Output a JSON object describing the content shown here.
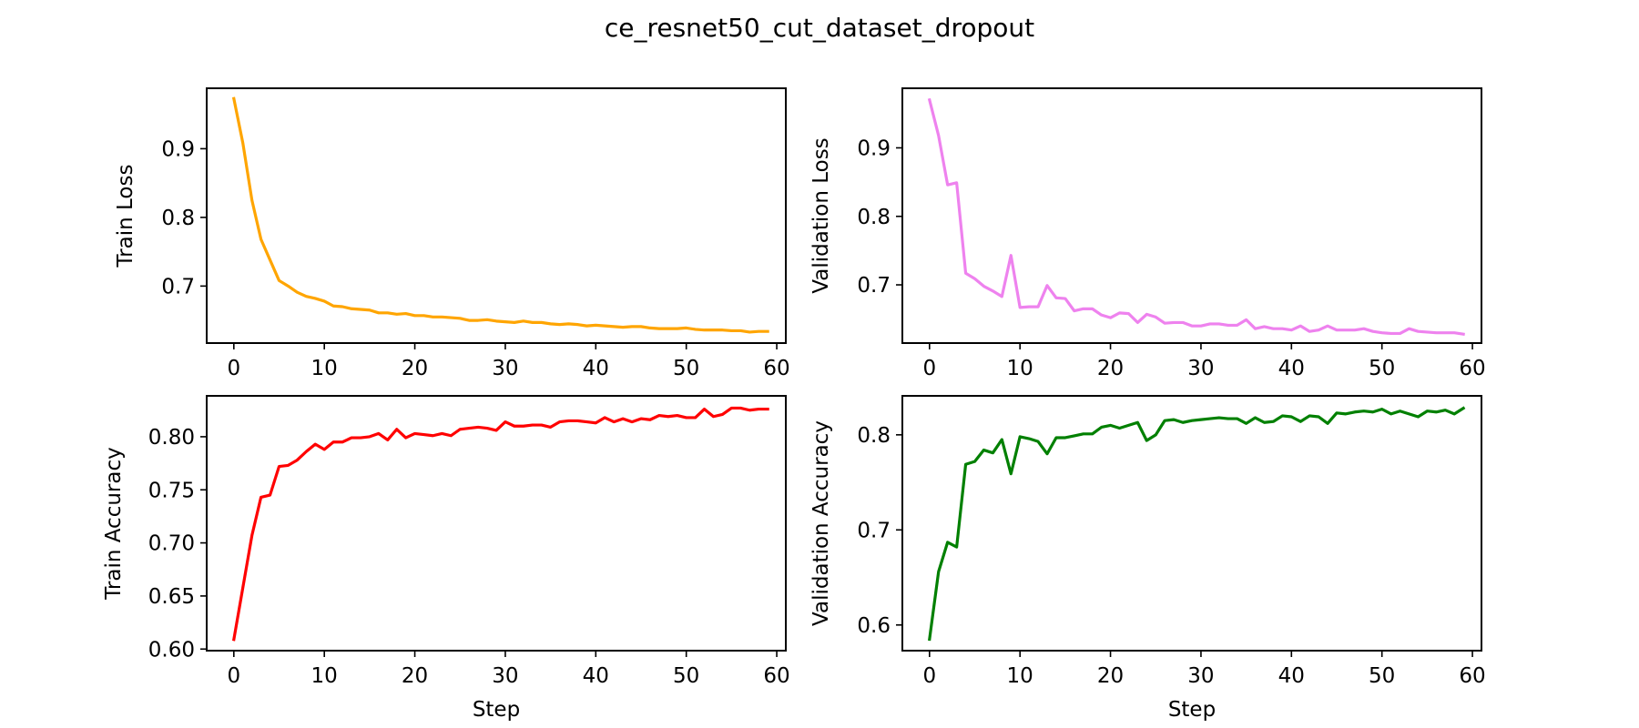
{
  "figure": {
    "title": "ce_resnet50_cut_dataset_dropout"
  },
  "chart_data": [
    {
      "type": "line",
      "ylabel": "Train Loss",
      "xlabel": "",
      "xlim": [
        -3,
        61
      ],
      "ylim": [
        0.617,
        0.988
      ],
      "xticks": [
        0,
        10,
        20,
        30,
        40,
        50,
        60
      ],
      "yticks": [
        0.7,
        0.8,
        0.9
      ],
      "ytick_decimals": 1,
      "color": "#FFA500",
      "series": [
        {
          "x": [
            0,
            1,
            2,
            3,
            4,
            5,
            6,
            7,
            8,
            9,
            10,
            11,
            12,
            13,
            14,
            15,
            16,
            17,
            18,
            19,
            20,
            21,
            22,
            23,
            24,
            25,
            26,
            27,
            28,
            29,
            30,
            31,
            32,
            33,
            34,
            35,
            36,
            37,
            38,
            39,
            40,
            41,
            42,
            43,
            44,
            45,
            46,
            47,
            48,
            49,
            50,
            51,
            52,
            53,
            54,
            55,
            56,
            57,
            58,
            59
          ],
          "y": [
            0.973,
            0.908,
            0.825,
            0.768,
            0.738,
            0.708,
            0.7,
            0.691,
            0.685,
            0.682,
            0.678,
            0.671,
            0.67,
            0.667,
            0.666,
            0.665,
            0.661,
            0.661,
            0.659,
            0.66,
            0.657,
            0.657,
            0.655,
            0.655,
            0.654,
            0.653,
            0.65,
            0.65,
            0.651,
            0.649,
            0.648,
            0.647,
            0.649,
            0.647,
            0.647,
            0.645,
            0.644,
            0.645,
            0.644,
            0.642,
            0.643,
            0.642,
            0.641,
            0.64,
            0.641,
            0.641,
            0.639,
            0.638,
            0.638,
            0.638,
            0.639,
            0.637,
            0.636,
            0.636,
            0.636,
            0.635,
            0.635,
            0.633,
            0.634,
            0.634
          ]
        }
      ]
    },
    {
      "type": "line",
      "ylabel": "Validation Loss",
      "xlabel": "",
      "xlim": [
        -3,
        61
      ],
      "ylim": [
        0.615,
        0.987
      ],
      "xticks": [
        0,
        10,
        20,
        30,
        40,
        50,
        60
      ],
      "yticks": [
        0.7,
        0.8,
        0.9
      ],
      "ytick_decimals": 1,
      "color": "#EE82EE",
      "series": [
        {
          "x": [
            0,
            1,
            2,
            3,
            4,
            5,
            6,
            7,
            8,
            9,
            10,
            11,
            12,
            13,
            14,
            15,
            16,
            17,
            18,
            19,
            20,
            21,
            22,
            23,
            24,
            25,
            26,
            27,
            28,
            29,
            30,
            31,
            32,
            33,
            34,
            35,
            36,
            37,
            38,
            39,
            40,
            41,
            42,
            43,
            44,
            45,
            46,
            47,
            48,
            49,
            50,
            51,
            52,
            53,
            54,
            55,
            56,
            57,
            58,
            59
          ],
          "y": [
            0.97,
            0.918,
            0.846,
            0.849,
            0.717,
            0.709,
            0.698,
            0.691,
            0.683,
            0.743,
            0.667,
            0.668,
            0.668,
            0.699,
            0.681,
            0.68,
            0.662,
            0.665,
            0.665,
            0.656,
            0.652,
            0.659,
            0.658,
            0.645,
            0.657,
            0.653,
            0.644,
            0.645,
            0.645,
            0.64,
            0.64,
            0.643,
            0.643,
            0.641,
            0.641,
            0.649,
            0.636,
            0.639,
            0.636,
            0.636,
            0.634,
            0.64,
            0.632,
            0.634,
            0.64,
            0.634,
            0.634,
            0.634,
            0.636,
            0.632,
            0.63,
            0.629,
            0.629,
            0.636,
            0.632,
            0.631,
            0.63,
            0.63,
            0.63,
            0.628
          ]
        }
      ]
    },
    {
      "type": "line",
      "ylabel": "Train Accuracy",
      "xlabel": "Step",
      "xlim": [
        -3,
        61
      ],
      "ylim": [
        0.5985,
        0.8385
      ],
      "xticks": [
        0,
        10,
        20,
        30,
        40,
        50,
        60
      ],
      "yticks": [
        0.6,
        0.65,
        0.7,
        0.75,
        0.8
      ],
      "ytick_decimals": 2,
      "color": "#FF0000",
      "series": [
        {
          "x": [
            0,
            1,
            2,
            3,
            4,
            5,
            6,
            7,
            8,
            9,
            10,
            11,
            12,
            13,
            14,
            15,
            16,
            17,
            18,
            19,
            20,
            21,
            22,
            23,
            24,
            25,
            26,
            27,
            28,
            29,
            30,
            31,
            32,
            33,
            34,
            35,
            36,
            37,
            38,
            39,
            40,
            41,
            42,
            43,
            44,
            45,
            46,
            47,
            48,
            49,
            50,
            51,
            52,
            53,
            54,
            55,
            56,
            57,
            58,
            59
          ],
          "y": [
            0.609,
            0.658,
            0.707,
            0.743,
            0.745,
            0.772,
            0.773,
            0.778,
            0.786,
            0.793,
            0.788,
            0.795,
            0.795,
            0.799,
            0.799,
            0.8,
            0.803,
            0.797,
            0.807,
            0.799,
            0.803,
            0.802,
            0.801,
            0.803,
            0.801,
            0.807,
            0.808,
            0.809,
            0.808,
            0.806,
            0.814,
            0.81,
            0.81,
            0.811,
            0.811,
            0.809,
            0.814,
            0.815,
            0.815,
            0.814,
            0.813,
            0.818,
            0.814,
            0.817,
            0.814,
            0.817,
            0.816,
            0.82,
            0.819,
            0.82,
            0.818,
            0.818,
            0.826,
            0.819,
            0.821,
            0.827,
            0.827,
            0.825,
            0.826,
            0.826
          ]
        }
      ]
    },
    {
      "type": "line",
      "ylabel": "Validation Accuracy",
      "xlabel": "Step",
      "xlim": [
        -3,
        61
      ],
      "ylim": [
        0.573,
        0.841
      ],
      "xticks": [
        0,
        10,
        20,
        30,
        40,
        50,
        60
      ],
      "yticks": [
        0.6,
        0.7,
        0.8
      ],
      "ytick_decimals": 1,
      "color": "#008000",
      "series": [
        {
          "x": [
            0,
            1,
            2,
            3,
            4,
            5,
            6,
            7,
            8,
            9,
            10,
            11,
            12,
            13,
            14,
            15,
            16,
            17,
            18,
            19,
            20,
            21,
            22,
            23,
            24,
            25,
            26,
            27,
            28,
            29,
            30,
            31,
            32,
            33,
            34,
            35,
            36,
            37,
            38,
            39,
            40,
            41,
            42,
            43,
            44,
            45,
            46,
            47,
            48,
            49,
            50,
            51,
            52,
            53,
            54,
            55,
            56,
            57,
            58,
            59
          ],
          "y": [
            0.585,
            0.656,
            0.687,
            0.682,
            0.769,
            0.772,
            0.784,
            0.781,
            0.795,
            0.759,
            0.798,
            0.796,
            0.793,
            0.78,
            0.797,
            0.797,
            0.799,
            0.801,
            0.801,
            0.808,
            0.81,
            0.807,
            0.81,
            0.813,
            0.794,
            0.8,
            0.815,
            0.816,
            0.813,
            0.815,
            0.816,
            0.817,
            0.818,
            0.817,
            0.817,
            0.812,
            0.818,
            0.813,
            0.814,
            0.82,
            0.819,
            0.814,
            0.82,
            0.819,
            0.812,
            0.823,
            0.822,
            0.824,
            0.825,
            0.824,
            0.827,
            0.822,
            0.825,
            0.822,
            0.819,
            0.825,
            0.824,
            0.826,
            0.822,
            0.828
          ]
        }
      ]
    }
  ]
}
